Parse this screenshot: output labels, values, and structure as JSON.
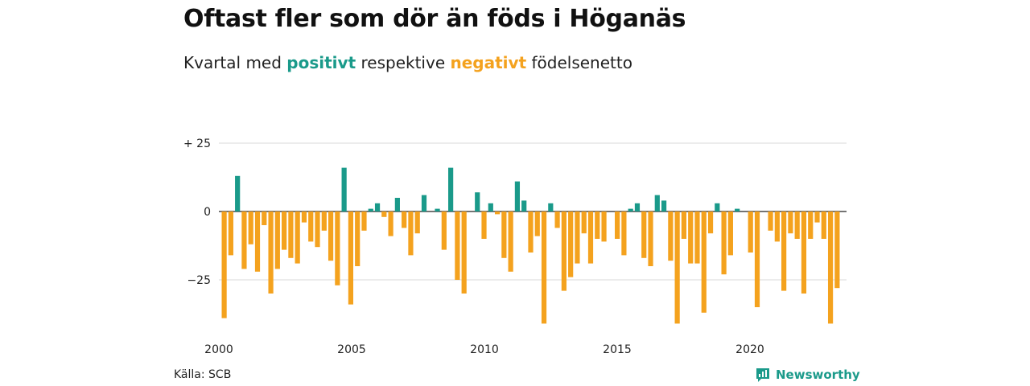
{
  "title": "Oftast fler som dör än föds i Höganäs",
  "subtitle": {
    "prefix": "Kvartal med",
    "positive_word": "positivt",
    "middle": "respektive",
    "negative_word": "negativt",
    "suffix": "födelsenetto"
  },
  "source": "Källa: SCB",
  "brand": "Newsworthy",
  "colors": {
    "positive": "#1a9a8a",
    "negative": "#f4a21e",
    "grid": "#d9d9d9",
    "baseline": "#222222"
  },
  "chart_data": {
    "type": "bar",
    "y_ticks": [
      "+ 25",
      "0",
      "−25"
    ],
    "y_tick_values": [
      25,
      0,
      -25
    ],
    "x_ticks": [
      "2000",
      "2005",
      "2010",
      "2015",
      "2020"
    ],
    "x_tick_values": [
      2000,
      2005,
      2010,
      2015,
      2020
    ],
    "x_start": 2000,
    "x_end": 2023.25,
    "ylim": [
      -41,
      25
    ],
    "grid": true,
    "values": [
      -39,
      -16,
      13,
      -21,
      -12,
      -22,
      -5,
      -30,
      -21,
      -14,
      -17,
      -19,
      -4,
      -11,
      -13,
      -7,
      -18,
      -27,
      16,
      -34,
      -20,
      -7,
      1,
      3,
      -2,
      -9,
      5,
      -6,
      -16,
      -8,
      6,
      0,
      1,
      -14,
      16,
      -25,
      -30,
      0,
      7,
      -10,
      3,
      -1,
      -17,
      -22,
      11,
      4,
      -15,
      -9,
      -41,
      3,
      -6,
      -29,
      -24,
      -19,
      -8,
      -19,
      -10,
      -11,
      0,
      -10,
      -16,
      1,
      3,
      -17,
      -20,
      6,
      4,
      -18,
      -41,
      -10,
      -19,
      -19,
      -37,
      -8,
      3,
      -23,
      -16,
      1,
      0,
      -15,
      -35,
      0,
      -7,
      -11,
      -29,
      -8,
      -10,
      -30,
      -10,
      -4,
      -10,
      -41,
      -28
    ]
  }
}
